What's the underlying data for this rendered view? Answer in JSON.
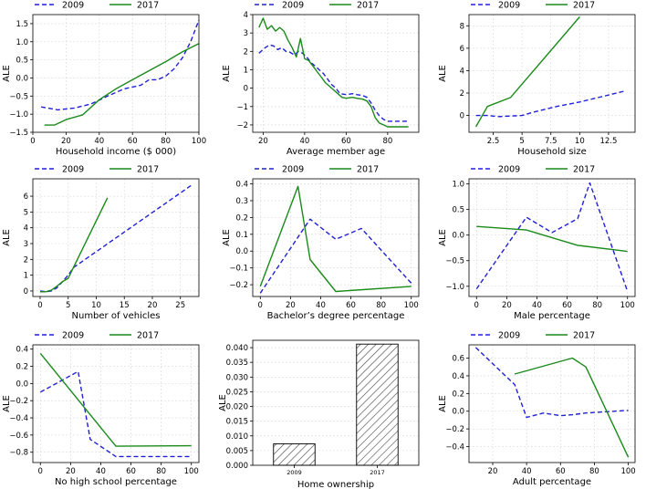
{
  "figure": {
    "series_names": [
      "2009",
      "2017"
    ]
  },
  "chart_data": [
    {
      "type": "line",
      "xlabel": "Household income ($ 000)",
      "ylabel": "ALE",
      "xlim": [
        0,
        100
      ],
      "ylim": [
        -1.5,
        1.75
      ],
      "xticks": [
        0,
        20,
        40,
        60,
        80,
        100
      ],
      "yticks": [
        -1.5,
        -1.0,
        -0.5,
        0.0,
        0.5,
        1.0,
        1.5
      ],
      "ytick_labels": [
        "−1.5",
        "−1.0",
        "−0.5",
        "0.0",
        "0.5",
        "1.0",
        "1.5"
      ],
      "series": [
        {
          "name": "2009",
          "x": [
            5,
            15,
            25,
            35,
            45,
            55,
            65,
            70,
            75,
            80,
            85,
            90,
            95,
            100
          ],
          "y": [
            -0.8,
            -0.88,
            -0.83,
            -0.72,
            -0.5,
            -0.3,
            -0.2,
            -0.05,
            -0.05,
            0.05,
            0.25,
            0.55,
            1.0,
            1.6
          ]
        },
        {
          "name": "2017",
          "x": [
            7,
            13,
            20,
            30,
            40,
            50,
            60,
            70,
            80,
            90,
            100
          ],
          "y": [
            -1.3,
            -1.3,
            -1.15,
            -1.02,
            -0.6,
            -0.3,
            -0.05,
            0.2,
            0.45,
            0.72,
            0.95
          ]
        }
      ]
    },
    {
      "type": "line",
      "xlabel": "Average member age",
      "ylabel": "ALE",
      "xlim": [
        15,
        95
      ],
      "ylim": [
        -2.4,
        4.0
      ],
      "xticks": [
        20,
        40,
        60,
        80
      ],
      "yticks": [
        -2,
        -1,
        0,
        1,
        2,
        3,
        4
      ],
      "ytick_labels": [
        "−2",
        "−1",
        "0",
        "1",
        "2",
        "3",
        "4"
      ],
      "series": [
        {
          "name": "2009",
          "x": [
            18,
            21,
            23,
            25,
            27,
            29,
            31,
            33,
            35,
            37,
            39,
            41,
            43,
            45,
            47,
            49,
            51,
            53,
            55,
            57,
            60,
            63,
            65,
            68,
            70,
            72,
            74,
            76,
            78,
            80,
            85,
            90
          ],
          "y": [
            1.9,
            2.2,
            2.35,
            2.3,
            2.1,
            2.2,
            2.0,
            1.95,
            1.8,
            2.0,
            1.9,
            1.7,
            1.4,
            1.2,
            1.0,
            0.8,
            0.5,
            0.2,
            0.0,
            -0.3,
            -0.35,
            -0.3,
            -0.35,
            -0.4,
            -0.5,
            -0.8,
            -1.2,
            -1.5,
            -1.7,
            -1.8,
            -1.8,
            -1.8
          ]
        },
        {
          "name": "2017",
          "x": [
            18,
            20,
            22,
            24,
            26,
            28,
            30,
            32,
            34,
            36,
            38,
            40,
            42,
            44,
            46,
            48,
            50,
            52,
            54,
            56,
            58,
            60,
            63,
            65,
            68,
            70,
            72,
            74,
            76,
            78,
            80,
            85,
            90
          ],
          "y": [
            3.3,
            3.8,
            3.2,
            3.4,
            3.1,
            3.3,
            3.1,
            2.6,
            2.2,
            1.7,
            2.7,
            1.6,
            1.5,
            1.2,
            0.9,
            0.6,
            0.3,
            0.1,
            -0.1,
            -0.3,
            -0.5,
            -0.55,
            -0.5,
            -0.55,
            -0.6,
            -0.7,
            -1.0,
            -1.6,
            -1.9,
            -2.0,
            -2.1,
            -2.1,
            -2.1
          ]
        }
      ]
    },
    {
      "type": "line",
      "xlabel": "Household size",
      "ylabel": "ALE",
      "xlim": [
        0.4,
        14.8
      ],
      "ylim": [
        -1.5,
        9.0
      ],
      "xticks": [
        2.5,
        5.0,
        7.5,
        10.0,
        12.5
      ],
      "yticks": [
        0,
        2,
        4,
        6,
        8
      ],
      "ytick_labels": [
        "0",
        "2",
        "4",
        "6",
        "8"
      ],
      "series": [
        {
          "name": "2009",
          "x": [
            1,
            2,
            3,
            4,
            5,
            6,
            8,
            10,
            12,
            14
          ],
          "y": [
            0.0,
            0.0,
            -0.1,
            -0.05,
            0.0,
            0.3,
            0.8,
            1.2,
            1.7,
            2.2
          ]
        },
        {
          "name": "2017",
          "x": [
            1,
            2,
            4,
            10
          ],
          "y": [
            -1.0,
            0.8,
            1.6,
            8.8
          ]
        }
      ]
    },
    {
      "type": "line",
      "xlabel": "Number of vehicles",
      "ylabel": "ALE",
      "xlim": [
        -1.3,
        28.3
      ],
      "ylim": [
        -0.35,
        7.1
      ],
      "xticks": [
        0,
        5,
        10,
        15,
        20,
        25
      ],
      "yticks": [
        0,
        1,
        2,
        3,
        4,
        5,
        6
      ],
      "ytick_labels": [
        "0",
        "1",
        "2",
        "3",
        "4",
        "5",
        "6"
      ],
      "series": [
        {
          "name": "2009",
          "x": [
            0,
            1,
            2,
            3,
            4,
            5,
            6,
            27
          ],
          "y": [
            0.0,
            -0.05,
            0.0,
            0.2,
            0.6,
            1.0,
            1.5,
            6.7
          ]
        },
        {
          "name": "2017",
          "x": [
            0,
            1,
            2,
            3,
            4,
            5,
            12
          ],
          "y": [
            -0.05,
            -0.05,
            0.05,
            0.3,
            0.6,
            0.8,
            5.9
          ]
        }
      ]
    },
    {
      "type": "line",
      "xlabel": "Bachelor’s degree percentage",
      "ylabel": "ALE",
      "xlim": [
        -5,
        105
      ],
      "ylim": [
        -0.27,
        0.43
      ],
      "xticks": [
        0,
        20,
        40,
        60,
        80,
        100
      ],
      "yticks": [
        -0.2,
        -0.1,
        0.0,
        0.1,
        0.2,
        0.3,
        0.4
      ],
      "ytick_labels": [
        "−0.2",
        "−0.1",
        "0.0",
        "0.1",
        "0.2",
        "0.3",
        "0.4"
      ],
      "series": [
        {
          "name": "2009",
          "x": [
            0,
            33,
            50,
            67,
            100
          ],
          "y": [
            -0.25,
            0.19,
            0.07,
            0.135,
            -0.19
          ]
        },
        {
          "name": "2017",
          "x": [
            0,
            25,
            33,
            50,
            100
          ],
          "y": [
            -0.21,
            0.385,
            -0.05,
            -0.24,
            -0.21
          ]
        }
      ]
    },
    {
      "type": "line",
      "xlabel": "Male percentage",
      "ylabel": "ALE",
      "xlim": [
        -5,
        105
      ],
      "ylim": [
        -1.2,
        1.1
      ],
      "xticks": [
        0,
        20,
        40,
        60,
        80,
        100
      ],
      "yticks": [
        -1.0,
        -0.5,
        0.0,
        0.5,
        1.0
      ],
      "ytick_labels": [
        "−1.0",
        "−0.5",
        "0.0",
        "0.5",
        "1.0"
      ],
      "series": [
        {
          "name": "2009",
          "x": [
            0,
            33,
            50,
            67,
            75,
            100
          ],
          "y": [
            -1.05,
            0.35,
            0.05,
            0.32,
            1.02,
            -1.1
          ]
        },
        {
          "name": "2017",
          "x": [
            0,
            33,
            67,
            100
          ],
          "y": [
            0.17,
            0.1,
            -0.2,
            -0.32
          ]
        }
      ]
    },
    {
      "type": "line",
      "xlabel": "No high school percentage",
      "ylabel": "ALE",
      "xlim": [
        -5,
        105
      ],
      "ylim": [
        -0.92,
        0.45
      ],
      "xticks": [
        0,
        20,
        40,
        60,
        80,
        100
      ],
      "yticks": [
        -0.8,
        -0.6,
        -0.4,
        -0.2,
        0.0,
        0.2,
        0.4
      ],
      "ytick_labels": [
        "−0.8",
        "−0.6",
        "−0.4",
        "−0.2",
        "0.0",
        "0.2",
        "0.4"
      ],
      "series": [
        {
          "name": "2009",
          "x": [
            0,
            25,
            33,
            50,
            100
          ],
          "y": [
            -0.1,
            0.14,
            -0.65,
            -0.85,
            -0.85
          ]
        },
        {
          "name": "2017",
          "x": [
            0,
            50,
            100
          ],
          "y": [
            0.35,
            -0.73,
            -0.725
          ]
        }
      ]
    },
    {
      "type": "bar",
      "categories": [
        "2009",
        "2017"
      ],
      "values": [
        0.0073,
        0.0412
      ],
      "xlabel": "Home ownership",
      "ylabel": "ALE",
      "ylim": [
        0,
        0.0425
      ],
      "yticks": [
        0.0,
        0.005,
        0.01,
        0.015,
        0.02,
        0.025,
        0.03,
        0.035,
        0.04
      ],
      "ytick_labels": [
        "0.000",
        "0.005",
        "0.010",
        "0.015",
        "0.020",
        "0.025",
        "0.030",
        "0.035",
        "0.040"
      ]
    },
    {
      "type": "line",
      "xlabel": "Adult percentage",
      "ylabel": "ALE",
      "xlim": [
        6,
        104
      ],
      "ylim": [
        -0.58,
        0.75
      ],
      "xticks": [
        20,
        40,
        60,
        80,
        100
      ],
      "yticks": [
        -0.4,
        -0.2,
        0.0,
        0.2,
        0.4,
        0.6
      ],
      "ytick_labels": [
        "−0.4",
        "−0.2",
        "0.0",
        "0.2",
        "0.4",
        "0.6"
      ],
      "series": [
        {
          "name": "2009",
          "x": [
            10,
            33,
            40,
            50,
            60,
            67,
            75,
            100
          ],
          "y": [
            0.72,
            0.3,
            -0.07,
            -0.02,
            -0.05,
            -0.04,
            -0.02,
            0.01
          ]
        },
        {
          "name": "2017",
          "x": [
            33,
            67,
            75,
            100
          ],
          "y": [
            0.42,
            0.6,
            0.5,
            -0.52
          ]
        }
      ]
    }
  ]
}
